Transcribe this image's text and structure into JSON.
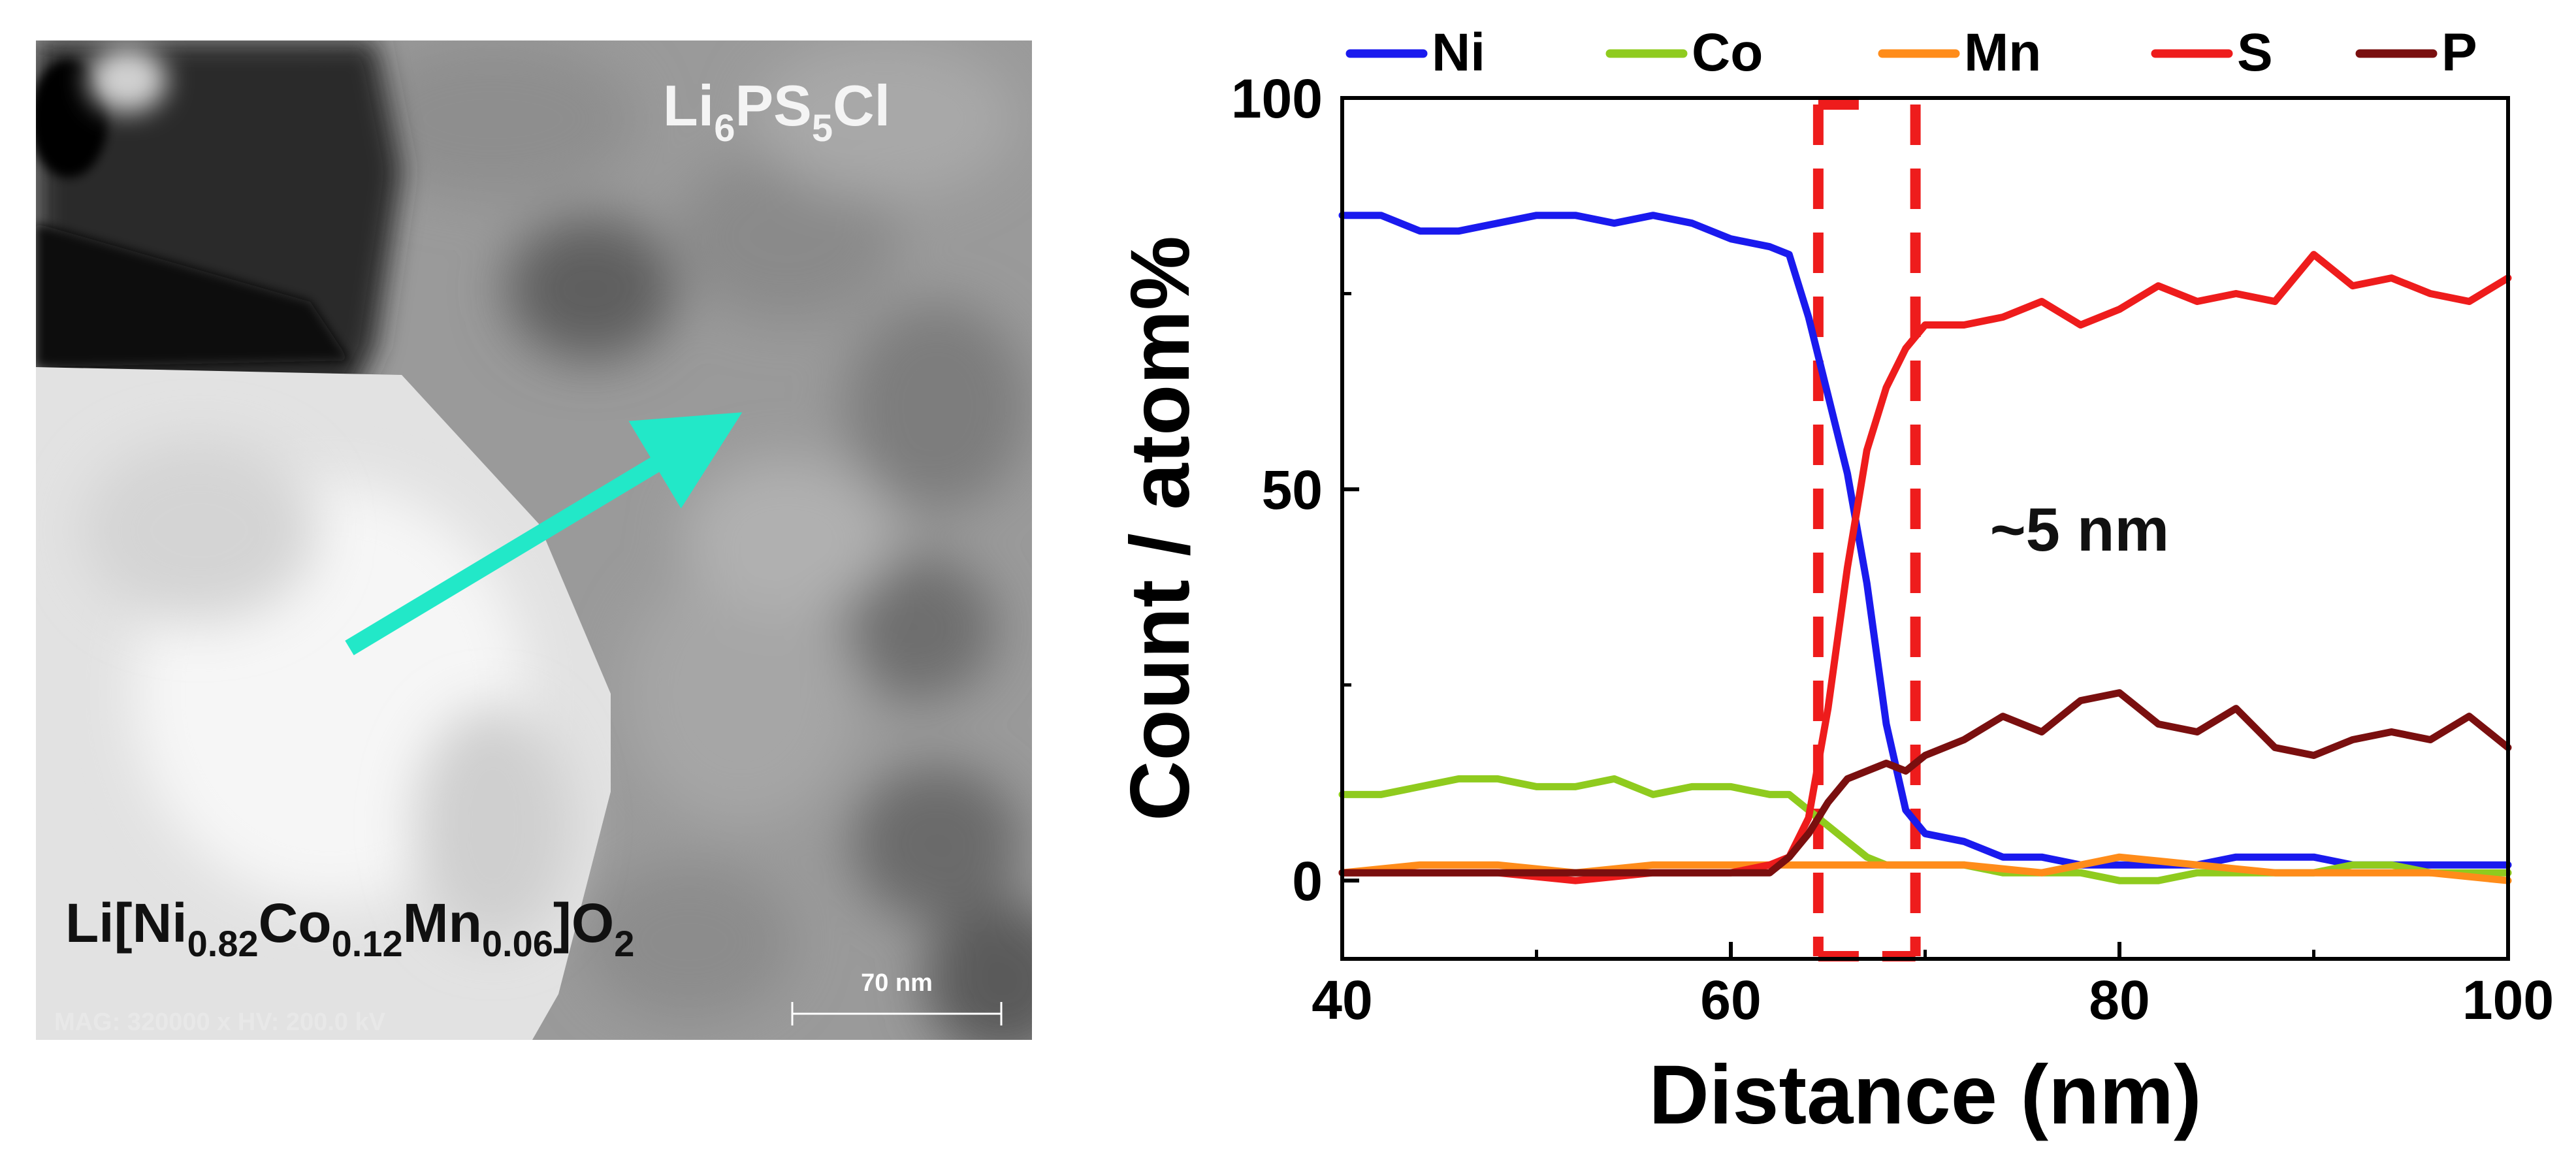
{
  "image_panel": {
    "phase_top": {
      "prefix": "Li",
      "s1": "6",
      "mid": "PS",
      "s2": "5",
      "suffix": "Cl"
    },
    "phase_bottom": {
      "a": "Li[Ni",
      "s1": "0.82",
      "b": "Co",
      "s2": "0.12",
      "c": "Mn",
      "s3": "0.06",
      "d": "]O",
      "s4": "2"
    },
    "scale_bar_label": "70 nm",
    "info_text": "MAG: 320000 x  HV: 200.0 kV",
    "colors": {
      "arrow": "#22e8c8"
    }
  },
  "chart_data": {
    "type": "line",
    "title": "",
    "xlabel": "Distance (nm)",
    "ylabel": "Count / atom%",
    "xlim": [
      40,
      100
    ],
    "ylim": [
      -10,
      100
    ],
    "xticks": [
      40,
      60,
      80,
      100
    ],
    "yticks": [
      0,
      50,
      100
    ],
    "grid": false,
    "legend_position": "top",
    "annotation": {
      "text": "~5 nm",
      "x": 73,
      "y": 44
    },
    "highlight_region": {
      "x_start": 64.5,
      "x_end": 69.5,
      "color": "#ee1c1c"
    },
    "series": [
      {
        "name": "Ni",
        "color": "#1a1aee",
        "x": [
          40,
          42,
          44,
          46,
          48,
          50,
          52,
          54,
          56,
          58,
          60,
          62,
          63,
          64,
          65,
          66,
          67,
          68,
          69,
          70,
          72,
          74,
          76,
          78,
          80,
          82,
          84,
          86,
          88,
          90,
          92,
          94,
          96,
          98,
          100
        ],
        "y": [
          85,
          85,
          83,
          83,
          84,
          85,
          85,
          84,
          85,
          84,
          82,
          81,
          80,
          72,
          62,
          52,
          38,
          20,
          9,
          6,
          5,
          3,
          3,
          2,
          2,
          2,
          2,
          3,
          3,
          3,
          2,
          2,
          2,
          2,
          2
        ]
      },
      {
        "name": "Co",
        "color": "#8fcb1e",
        "x": [
          40,
          42,
          44,
          46,
          48,
          50,
          52,
          54,
          56,
          58,
          60,
          62,
          63,
          64,
          65,
          66,
          67,
          68,
          70,
          72,
          74,
          76,
          78,
          80,
          82,
          84,
          86,
          88,
          90,
          92,
          94,
          96,
          98,
          100
        ],
        "y": [
          11,
          11,
          12,
          13,
          13,
          12,
          12,
          13,
          11,
          12,
          12,
          11,
          11,
          9,
          7,
          5,
          3,
          2,
          2,
          2,
          1,
          1,
          1,
          0,
          0,
          1,
          1,
          1,
          1,
          2,
          2,
          1,
          1,
          1
        ]
      },
      {
        "name": "Mn",
        "color": "#ff8c1a",
        "x": [
          40,
          44,
          48,
          52,
          56,
          60,
          64,
          68,
          72,
          76,
          80,
          84,
          88,
          92,
          96,
          100
        ],
        "y": [
          1,
          2,
          2,
          1,
          2,
          2,
          2,
          2,
          2,
          1,
          3,
          2,
          1,
          1,
          1,
          0
        ]
      },
      {
        "name": "S",
        "color": "#ee1c1c",
        "x": [
          40,
          44,
          48,
          52,
          56,
          60,
          62,
          63,
          64,
          65,
          66,
          67,
          68,
          69,
          70,
          72,
          74,
          76,
          78,
          80,
          82,
          84,
          86,
          88,
          90,
          92,
          94,
          96,
          98,
          100
        ],
        "y": [
          1,
          1,
          1,
          0,
          1,
          1,
          2,
          3,
          8,
          22,
          40,
          55,
          63,
          68,
          71,
          71,
          72,
          74,
          71,
          73,
          76,
          74,
          75,
          74,
          80,
          76,
          77,
          75,
          74,
          77
        ]
      },
      {
        "name": "P",
        "color": "#7a0f0f",
        "x": [
          40,
          44,
          48,
          52,
          56,
          60,
          62,
          63,
          64,
          65,
          66,
          67,
          68,
          69,
          70,
          72,
          74,
          76,
          78,
          80,
          82,
          84,
          86,
          88,
          90,
          92,
          94,
          96,
          98,
          100
        ],
        "y": [
          1,
          1,
          1,
          1,
          1,
          1,
          1,
          3,
          6,
          10,
          13,
          14,
          15,
          14,
          16,
          18,
          21,
          19,
          23,
          24,
          20,
          19,
          22,
          17,
          16,
          18,
          19,
          18,
          21,
          17
        ]
      }
    ]
  }
}
